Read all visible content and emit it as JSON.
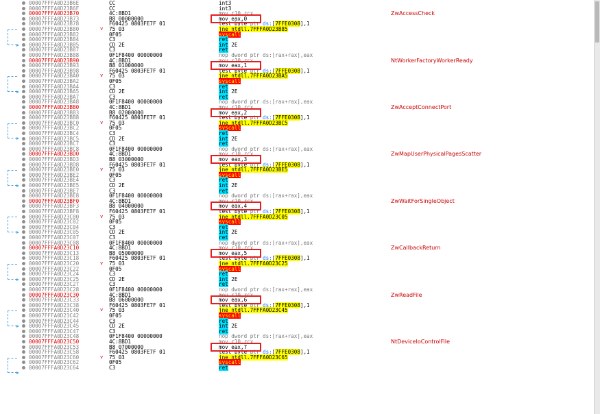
{
  "rows": [
    {
      "addr": "00007FFFA0D23B6E",
      "bytes": "CC",
      "instr": "int3",
      "comment": "",
      "cur": false
    },
    {
      "addr": "00007FFFA0D23B6F",
      "bytes": "CC",
      "instr": "int3",
      "comment": "",
      "cur": false
    },
    {
      "addr": "00007FFFA0D23B70",
      "bytes": "4C:8BD1",
      "instr": "mov r10,rcx",
      "comment": "ZwAccessCheck",
      "cur": true
    },
    {
      "addr": "00007FFFA0D23B73",
      "bytes": "B8 00000000",
      "instr": "mov eax,0",
      "comment": "",
      "cur": false
    },
    {
      "addr": "00007FFFA0D23B78",
      "bytes": "F60425 0803FE7F 01",
      "instr": "test byte ptr ds:[7FFE0308],1",
      "comment": "",
      "cur": false
    },
    {
      "addr": "00007FFFA0D23B80",
      "bytes": "75 03",
      "instr": "jne ntdll.7FFFA0D23B85",
      "comment": "",
      "cur": false,
      "mark": "v"
    },
    {
      "addr": "00007FFFA0D23B82",
      "bytes": "0F05",
      "instr": "syscall",
      "comment": "",
      "cur": false
    },
    {
      "addr": "00007FFFA0D23B84",
      "bytes": "C3",
      "instr": "ret",
      "comment": "",
      "cur": false
    },
    {
      "addr": "00007FFFA0D23B85",
      "bytes": "CD 2E",
      "instr": "int 2E",
      "comment": "",
      "cur": false
    },
    {
      "addr": "00007FFFA0D23B87",
      "bytes": "C3",
      "instr": "ret",
      "comment": "",
      "cur": false
    },
    {
      "addr": "00007FFFA0D23B88",
      "bytes": "0F1F8400 00000000",
      "instr": "nop dword ptr ds:[rax+rax],eax",
      "comment": "",
      "cur": false
    },
    {
      "addr": "00007FFFA0D23B90",
      "bytes": "4C:8BD1",
      "instr": "mov r10,rcx",
      "comment": "NtWorkerFactoryWorkerReady",
      "cur": true
    },
    {
      "addr": "00007FFFA0D23B93",
      "bytes": "B8 01000000",
      "instr": "mov eax,1",
      "comment": "",
      "cur": false
    },
    {
      "addr": "00007FFFA0D23B98",
      "bytes": "F60425 0803FE7F 01",
      "instr": "test byte ptr ds:[7FFE0308],1",
      "comment": "",
      "cur": false
    },
    {
      "addr": "00007FFFA0D23BA0",
      "bytes": "75 03",
      "instr": "jne ntdll.7FFFA0D23BA5",
      "comment": "",
      "cur": false,
      "mark": "v"
    },
    {
      "addr": "00007FFFA0D23BA2",
      "bytes": "0F05",
      "instr": "syscall",
      "comment": "",
      "cur": false
    },
    {
      "addr": "00007FFFA0D23BA4",
      "bytes": "C3",
      "instr": "ret",
      "comment": "",
      "cur": false
    },
    {
      "addr": "00007FFFA0D23BA5",
      "bytes": "CD 2E",
      "instr": "int 2E",
      "comment": "",
      "cur": false
    },
    {
      "addr": "00007FFFA0D23BA7",
      "bytes": "C3",
      "instr": "ret",
      "comment": "",
      "cur": false
    },
    {
      "addr": "00007FFFA0D23BA8",
      "bytes": "0F1F8400 00000000",
      "instr": "nop dword ptr ds:[rax+rax],eax",
      "comment": "",
      "cur": false
    },
    {
      "addr": "00007FFFA0D23BB0",
      "bytes": "4C:8BD1",
      "instr": "mov r10,rcx",
      "comment": "ZwAcceptConnectPort",
      "cur": true
    },
    {
      "addr": "00007FFFA0D23BB3",
      "bytes": "B8 02000000",
      "instr": "mov eax,2",
      "comment": "",
      "cur": false
    },
    {
      "addr": "00007FFFA0D23BB8",
      "bytes": "F60425 0803FE7F 01",
      "instr": "test byte ptr ds:[7FFE0308],1",
      "comment": "",
      "cur": false
    },
    {
      "addr": "00007FFFA0D23BC0",
      "bytes": "75 03",
      "instr": "jne ntdll.7FFFA0D23BC5",
      "comment": "",
      "cur": false,
      "mark": "v"
    },
    {
      "addr": "00007FFFA0D23BC2",
      "bytes": "0F05",
      "instr": "syscall",
      "comment": "",
      "cur": false
    },
    {
      "addr": "00007FFFA0D23BC4",
      "bytes": "C3",
      "instr": "ret",
      "comment": "",
      "cur": false
    },
    {
      "addr": "00007FFFA0D23BC5",
      "bytes": "CD 2E",
      "instr": "int 2E",
      "comment": "",
      "cur": false
    },
    {
      "addr": "00007FFFA0D23BC7",
      "bytes": "C3",
      "instr": "ret",
      "comment": "",
      "cur": false
    },
    {
      "addr": "00007FFFA0D23BC8",
      "bytes": "0F1F8400 00000000",
      "instr": "nop dword ptr ds:[rax+rax],eax",
      "comment": "",
      "cur": false
    },
    {
      "addr": "00007FFFA0D23BD0",
      "bytes": "4C:8BD1",
      "instr": "mov r10,rcx",
      "comment": "ZwMapUserPhysicalPagesScatter",
      "cur": true
    },
    {
      "addr": "00007FFFA0D23BD3",
      "bytes": "B8 03000000",
      "instr": "mov eax,3",
      "comment": "",
      "cur": false
    },
    {
      "addr": "00007FFFA0D23BD8",
      "bytes": "F60425 0803FE7F 01",
      "instr": "test byte ptr ds:[7FFE0308],1",
      "comment": "",
      "cur": false
    },
    {
      "addr": "00007FFFA0D23BE0",
      "bytes": "75 03",
      "instr": "jne ntdll.7FFFA0D23BE5",
      "comment": "",
      "cur": false,
      "mark": "v"
    },
    {
      "addr": "00007FFFA0D23BE2",
      "bytes": "0F05",
      "instr": "syscall",
      "comment": "",
      "cur": false
    },
    {
      "addr": "00007FFFA0D23BE4",
      "bytes": "C3",
      "instr": "ret",
      "comment": "",
      "cur": false
    },
    {
      "addr": "00007FFFA0D23BE5",
      "bytes": "CD 2E",
      "instr": "int 2E",
      "comment": "",
      "cur": false
    },
    {
      "addr": "00007FFFA0D23BE7",
      "bytes": "C3",
      "instr": "ret",
      "comment": "",
      "cur": false
    },
    {
      "addr": "00007FFFA0D23BE8",
      "bytes": "0F1F8400 00000000",
      "instr": "nop dword ptr ds:[rax+rax],eax",
      "comment": "",
      "cur": false
    },
    {
      "addr": "00007FFFA0D23BF0",
      "bytes": "4C:8BD1",
      "instr": "mov r10,rcx",
      "comment": "ZwWaitForSingleObject",
      "cur": true
    },
    {
      "addr": "00007FFFA0D23BF3",
      "bytes": "B8 04000000",
      "instr": "mov eax,4",
      "comment": "",
      "cur": false
    },
    {
      "addr": "00007FFFA0D23BF8",
      "bytes": "F60425 0803FE7F 01",
      "instr": "test byte ptr ds:[7FFE0308],1",
      "comment": "",
      "cur": false
    },
    {
      "addr": "00007FFFA0D23C00",
      "bytes": "75 03",
      "instr": "jne ntdll.7FFFA0D23C05",
      "comment": "",
      "cur": false,
      "mark": "v"
    },
    {
      "addr": "00007FFFA0D23C02",
      "bytes": "0F05",
      "instr": "syscall",
      "comment": "",
      "cur": false
    },
    {
      "addr": "00007FFFA0D23C04",
      "bytes": "C3",
      "instr": "ret",
      "comment": "",
      "cur": false
    },
    {
      "addr": "00007FFFA0D23C05",
      "bytes": "CD 2E",
      "instr": "int 2E",
      "comment": "",
      "cur": false
    },
    {
      "addr": "00007FFFA0D23C07",
      "bytes": "C3",
      "instr": "ret",
      "comment": "",
      "cur": false
    },
    {
      "addr": "00007FFFA0D23C08",
      "bytes": "0F1F8400 00000000",
      "instr": "nop dword ptr ds:[rax+rax],eax",
      "comment": "",
      "cur": false
    },
    {
      "addr": "00007FFFA0D23C10",
      "bytes": "4C:8BD1",
      "instr": "mov r10,rcx",
      "comment": "ZwCallbackReturn",
      "cur": true
    },
    {
      "addr": "00007FFFA0D23C13",
      "bytes": "B8 05000000",
      "instr": "mov eax,5",
      "comment": "",
      "cur": false
    },
    {
      "addr": "00007FFFA0D23C18",
      "bytes": "F60425 0803FE7F 01",
      "instr": "test byte ptr ds:[7FFE0308],1",
      "comment": "",
      "cur": false
    },
    {
      "addr": "00007FFFA0D23C20",
      "bytes": "75 03",
      "instr": "jne ntdll.7FFFA0D23C25",
      "comment": "",
      "cur": false,
      "mark": "v"
    },
    {
      "addr": "00007FFFA0D23C22",
      "bytes": "0F05",
      "instr": "syscall",
      "comment": "",
      "cur": false
    },
    {
      "addr": "00007FFFA0D23C24",
      "bytes": "C3",
      "instr": "ret",
      "comment": "",
      "cur": false
    },
    {
      "addr": "00007FFFA0D23C25",
      "bytes": "CD 2E",
      "instr": "int 2E",
      "comment": "",
      "cur": false
    },
    {
      "addr": "00007FFFA0D23C27",
      "bytes": "C3",
      "instr": "ret",
      "comment": "",
      "cur": false
    },
    {
      "addr": "00007FFFA0D23C28",
      "bytes": "0F1F8400 00000000",
      "instr": "nop dword ptr ds:[rax+rax],eax",
      "comment": "",
      "cur": false
    },
    {
      "addr": "00007FFFA0D23C30",
      "bytes": "4C:8BD1",
      "instr": "mov r10,rcx",
      "comment": "ZwReadFile",
      "cur": true
    },
    {
      "addr": "00007FFFA0D23C33",
      "bytes": "B8 06000000",
      "instr": "mov eax,6",
      "comment": "",
      "cur": false
    },
    {
      "addr": "00007FFFA0D23C38",
      "bytes": "F60425 0803FE7F 01",
      "instr": "test byte ptr ds:[7FFE0308],1",
      "comment": "",
      "cur": false
    },
    {
      "addr": "00007FFFA0D23C40",
      "bytes": "75 03",
      "instr": "jne ntdll.7FFFA0D23C45",
      "comment": "",
      "cur": false,
      "mark": "v"
    },
    {
      "addr": "00007FFFA0D23C42",
      "bytes": "0F05",
      "instr": "syscall",
      "comment": "",
      "cur": false
    },
    {
      "addr": "00007FFFA0D23C44",
      "bytes": "C3",
      "instr": "ret",
      "comment": "",
      "cur": false
    },
    {
      "addr": "00007FFFA0D23C45",
      "bytes": "CD 2E",
      "instr": "int 2E",
      "comment": "",
      "cur": false
    },
    {
      "addr": "00007FFFA0D23C47",
      "bytes": "C3",
      "instr": "ret",
      "comment": "",
      "cur": false
    },
    {
      "addr": "00007FFFA0D23C48",
      "bytes": "0F1F8400 00000000",
      "instr": "nop dword ptr ds:[rax+rax],eax",
      "comment": "",
      "cur": false
    },
    {
      "addr": "00007FFFA0D23C50",
      "bytes": "4C:8BD1",
      "instr": "mov r10,rcx",
      "comment": "NtDeviceIoControlFile",
      "cur": true
    },
    {
      "addr": "00007FFFA0D23C53",
      "bytes": "B8 07000000",
      "instr": "mov eax,7",
      "comment": "",
      "cur": false
    },
    {
      "addr": "00007FFFA0D23C58",
      "bytes": "F60425 0803FE7F 01",
      "instr": "test byte ptr ds:[7FFE0308],1",
      "comment": "",
      "cur": false
    },
    {
      "addr": "00007FFFA0D23C60",
      "bytes": "75 03",
      "instr": "jne ntdll.7FFFA0D23C65",
      "comment": "",
      "cur": false,
      "mark": "v"
    },
    {
      "addr": "00007FFFA0D23C62",
      "bytes": "0F05",
      "instr": "syscall",
      "comment": "",
      "cur": false
    },
    {
      "addr": "00007FFFA0D23C64",
      "bytes": "C3",
      "instr": "ret",
      "comment": "",
      "cur": false
    }
  ],
  "highlighted_rows": [
    3,
    12,
    21,
    30,
    39,
    48,
    57,
    66
  ],
  "jump_pairs": [
    [
      5,
      8
    ],
    [
      14,
      17
    ],
    [
      23,
      26
    ],
    [
      32,
      35
    ],
    [
      41,
      44
    ],
    [
      50,
      53
    ],
    [
      59,
      62
    ],
    [
      68,
      71
    ]
  ],
  "colors": {
    "highlight_box": "#e02020",
    "ret_bg": "#00e0ff",
    "syscall_bg": "#ff0000",
    "jne_bg": "#ffff00",
    "comment": "#c80000",
    "current_addr": "#e00000"
  }
}
